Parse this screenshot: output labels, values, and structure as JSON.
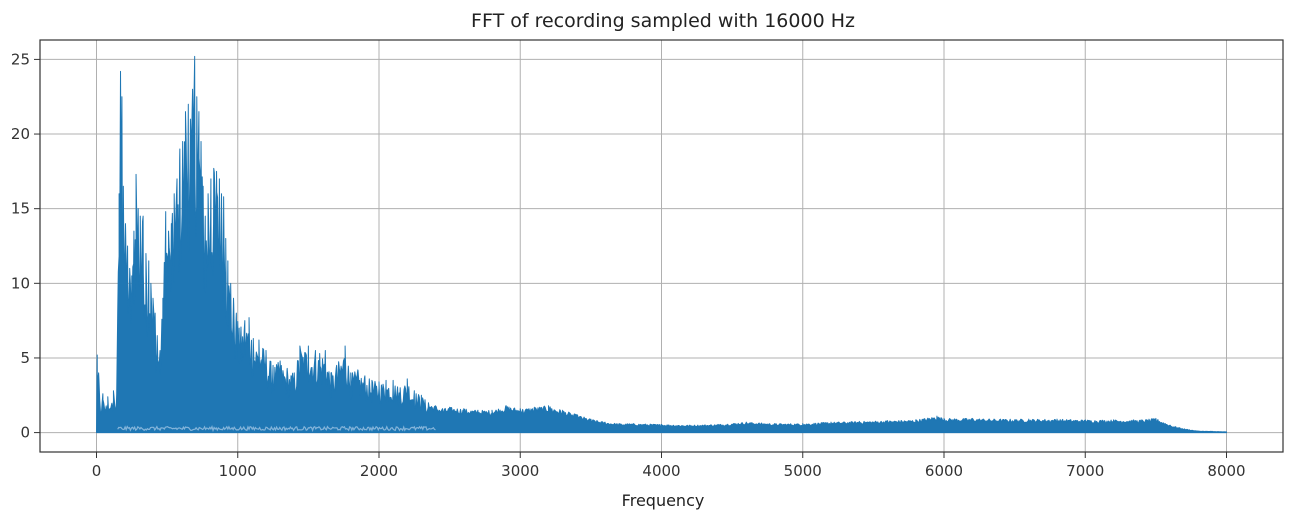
{
  "chart_data": {
    "type": "line",
    "title": "FFT of recording sampled with 16000 Hz",
    "xlabel": "Frequency",
    "ylabel": "",
    "xlim": [
      -400,
      8400
    ],
    "ylim": [
      -1.3,
      26.3
    ],
    "xticks": [
      0,
      1000,
      2000,
      3000,
      4000,
      5000,
      6000,
      7000,
      8000
    ],
    "yticks": [
      0,
      5,
      10,
      15,
      20,
      25
    ],
    "grid": true,
    "line_color": "#1f77b4",
    "series": [
      {
        "name": "",
        "envelope": [
          [
            0,
            0.0
          ],
          [
            5,
            5.2
          ],
          [
            15,
            4.0
          ],
          [
            30,
            1.2
          ],
          [
            45,
            2.6
          ],
          [
            60,
            1.5
          ],
          [
            80,
            2.4
          ],
          [
            100,
            1.6
          ],
          [
            120,
            2.8
          ],
          [
            140,
            1.8
          ],
          [
            150,
            8.0
          ],
          [
            160,
            16.0
          ],
          [
            170,
            24.2
          ],
          [
            180,
            22.5
          ],
          [
            190,
            16.5
          ],
          [
            205,
            14.0
          ],
          [
            220,
            12.5
          ],
          [
            235,
            11.0
          ],
          [
            250,
            10.5
          ],
          [
            265,
            13.5
          ],
          [
            280,
            17.3
          ],
          [
            295,
            15.0
          ],
          [
            310,
            14.5
          ],
          [
            330,
            14.5
          ],
          [
            350,
            12.0
          ],
          [
            370,
            11.5
          ],
          [
            385,
            10.0
          ],
          [
            400,
            9.0
          ],
          [
            415,
            8.0
          ],
          [
            430,
            6.5
          ],
          [
            450,
            5.5
          ],
          [
            470,
            9.0
          ],
          [
            490,
            14.8
          ],
          [
            510,
            13.5
          ],
          [
            530,
            14.0
          ],
          [
            550,
            16.0
          ],
          [
            570,
            17.0
          ],
          [
            590,
            19.0
          ],
          [
            610,
            19.5
          ],
          [
            630,
            21.5
          ],
          [
            650,
            22.0
          ],
          [
            665,
            21.0
          ],
          [
            680,
            23.0
          ],
          [
            695,
            25.2
          ],
          [
            710,
            22.5
          ],
          [
            725,
            21.5
          ],
          [
            740,
            19.5
          ],
          [
            755,
            16.5
          ],
          [
            770,
            14.5
          ],
          [
            790,
            16.0
          ],
          [
            810,
            17.0
          ],
          [
            830,
            17.7
          ],
          [
            850,
            17.5
          ],
          [
            870,
            17.0
          ],
          [
            885,
            16.0
          ],
          [
            900,
            15.8
          ],
          [
            915,
            13.0
          ],
          [
            930,
            11.5
          ],
          [
            950,
            10.0
          ],
          [
            970,
            9.0
          ],
          [
            990,
            8.0
          ],
          [
            1010,
            7.0
          ],
          [
            1050,
            7.5
          ],
          [
            1080,
            7.7
          ],
          [
            1110,
            6.3
          ],
          [
            1150,
            6.2
          ],
          [
            1200,
            5.5
          ],
          [
            1250,
            4.5
          ],
          [
            1300,
            4.8
          ],
          [
            1350,
            4.3
          ],
          [
            1400,
            4.0
          ],
          [
            1440,
            5.8
          ],
          [
            1500,
            5.8
          ],
          [
            1550,
            5.5
          ],
          [
            1580,
            5.3
          ],
          [
            1620,
            5.5
          ],
          [
            1660,
            4.0
          ],
          [
            1700,
            4.5
          ],
          [
            1760,
            5.8
          ],
          [
            1800,
            4.0
          ],
          [
            1850,
            4.2
          ],
          [
            1900,
            3.8
          ],
          [
            1950,
            3.5
          ],
          [
            2000,
            3.4
          ],
          [
            2050,
            3.5
          ],
          [
            2100,
            3.5
          ],
          [
            2150,
            3.0
          ],
          [
            2200,
            3.6
          ],
          [
            2250,
            2.8
          ],
          [
            2300,
            2.5
          ],
          [
            2350,
            2.0
          ],
          [
            2400,
            1.8
          ],
          [
            2450,
            1.6
          ],
          [
            2500,
            1.7
          ],
          [
            2600,
            1.6
          ],
          [
            2700,
            1.5
          ],
          [
            2800,
            1.5
          ],
          [
            2900,
            1.8
          ],
          [
            3000,
            1.6
          ],
          [
            3100,
            1.7
          ],
          [
            3200,
            1.8
          ],
          [
            3300,
            1.5
          ],
          [
            3400,
            1.2
          ],
          [
            3500,
            0.9
          ],
          [
            3600,
            0.7
          ],
          [
            3700,
            0.6
          ],
          [
            3800,
            0.6
          ],
          [
            4000,
            0.55
          ],
          [
            4200,
            0.5
          ],
          [
            4400,
            0.55
          ],
          [
            4600,
            0.7
          ],
          [
            4800,
            0.6
          ],
          [
            5000,
            0.6
          ],
          [
            5200,
            0.7
          ],
          [
            5400,
            0.75
          ],
          [
            5600,
            0.8
          ],
          [
            5800,
            0.85
          ],
          [
            5950,
            1.1
          ],
          [
            6000,
            0.95
          ],
          [
            6200,
            0.95
          ],
          [
            6400,
            0.9
          ],
          [
            6600,
            0.9
          ],
          [
            6800,
            0.9
          ],
          [
            7000,
            0.85
          ],
          [
            7200,
            0.85
          ],
          [
            7400,
            0.85
          ],
          [
            7500,
            0.95
          ],
          [
            7600,
            0.5
          ],
          [
            7700,
            0.25
          ],
          [
            7800,
            0.1
          ],
          [
            7900,
            0.08
          ],
          [
            8000,
            0.05
          ]
        ]
      }
    ]
  }
}
